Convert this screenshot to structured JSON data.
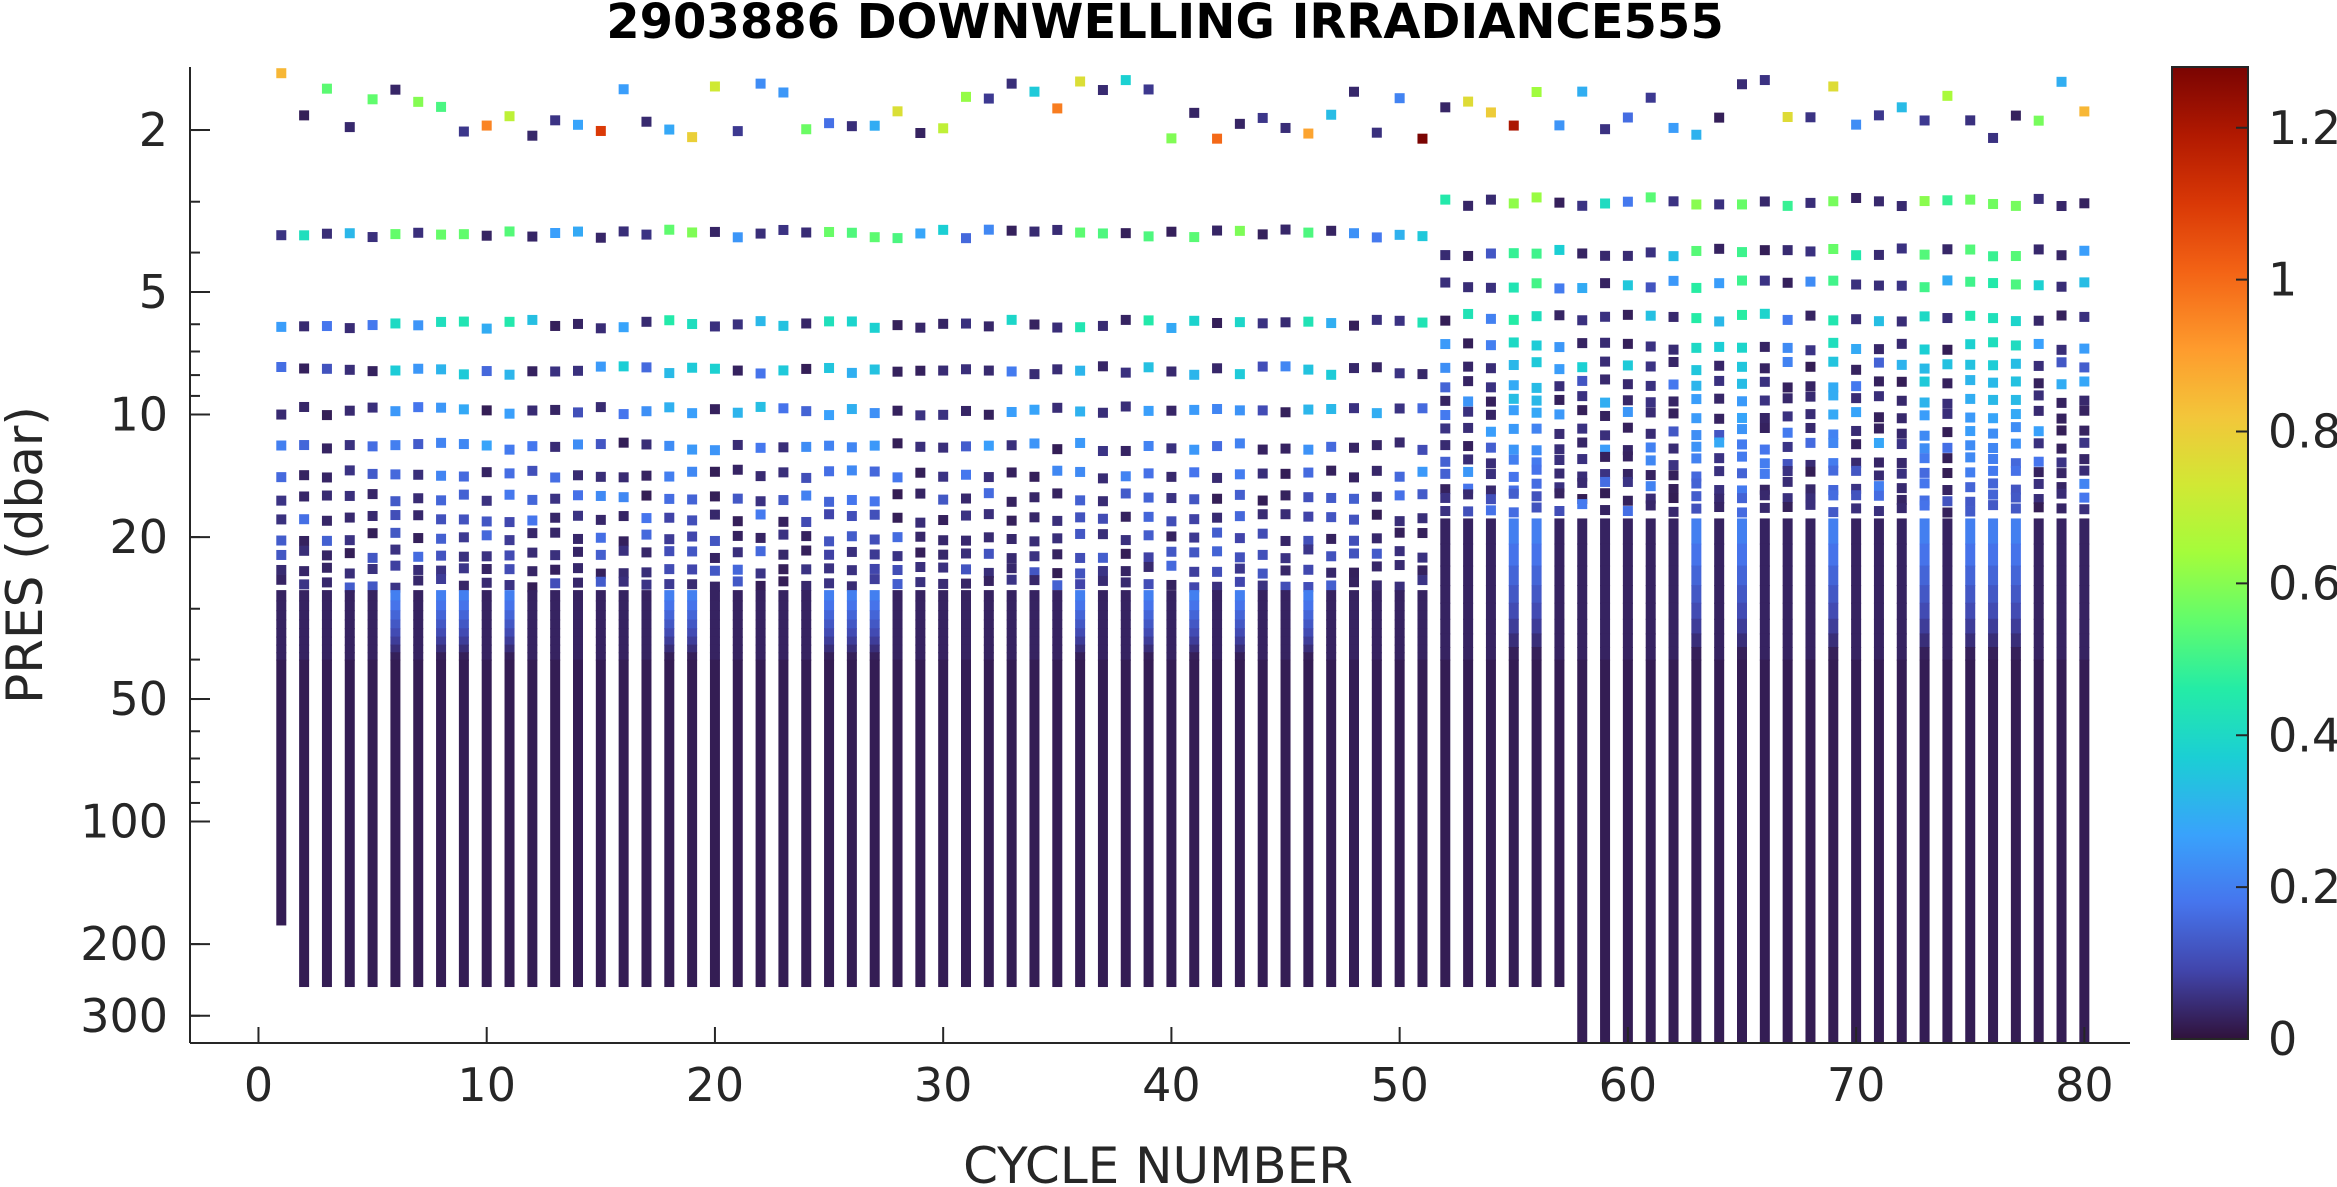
{
  "chart_data": {
    "type": "scatter",
    "title": "2903886  DOWNWELLING IRRADIANCE555",
    "xlabel": "CYCLE NUMBER",
    "ylabel": "PRES (dbar)",
    "xlim": [
      -3,
      82
    ],
    "ylim": [
      350,
      1.4
    ],
    "y_scale": "log",
    "y_reversed": true,
    "x_ticks": [
      0,
      10,
      20,
      30,
      40,
      50,
      60,
      70,
      80
    ],
    "x_tick_labels": [
      "0",
      "10",
      "20",
      "30",
      "40",
      "50",
      "60",
      "70",
      "80"
    ],
    "y_ticks": [
      2,
      5,
      10,
      20,
      50,
      100,
      200,
      300
    ],
    "y_tick_labels": [
      "2",
      "5",
      "10",
      "20",
      "50",
      "100",
      "200",
      "300"
    ],
    "colorbar": {
      "colormap": "turbo",
      "range": [
        0,
        1.28
      ],
      "ticks": [
        0,
        0.2,
        0.4,
        0.6,
        0.8,
        1,
        1.2
      ],
      "tick_labels": [
        "0",
        "0.2",
        "0.4",
        "0.6",
        "0.8",
        "1",
        "1.2"
      ]
    },
    "grid": false,
    "profiles": {
      "cycles_first": 1,
      "cycles_last": 80,
      "deep_column_start_pressure": 28,
      "max_pressure_by_cycle": [
        {
          "cycles": [
            1,
            1
          ],
          "max_pressure": 180
        },
        {
          "cycles": [
            2,
            57
          ],
          "max_pressure": 255
        },
        {
          "cycles": [
            58,
            80
          ],
          "max_pressure": 350
        }
      ],
      "surface_pressure_range_dbar": [
        1.5,
        2.1
      ],
      "discrete_levels_cycles_1_51_dbar": [
        3.6,
        6.0,
        7.8,
        9.8,
        12,
        14,
        16,
        18,
        20,
        22,
        24,
        26
      ],
      "discrete_levels_cycles_52_80_dbar": [
        3.0,
        4.0,
        4.8,
        5.8,
        6.8,
        7.6,
        8.4,
        9.2,
        10,
        11,
        12,
        13,
        14,
        15,
        16,
        17
      ],
      "notable_high_values": [
        {
          "cycle": 1,
          "pressure": 1.45,
          "value": 0.85
        },
        {
          "cycle": 51,
          "pressure": 2.1,
          "value": 1.28
        },
        {
          "cycle": 55,
          "pressure": 1.95,
          "value": 1.2
        },
        {
          "cycle": 42,
          "pressure": 2.1,
          "value": 1.0
        },
        {
          "cycle": 10,
          "pressure": 1.95,
          "value": 0.95
        },
        {
          "cycle": 80,
          "pressure": 1.8,
          "value": 0.85
        }
      ]
    }
  }
}
